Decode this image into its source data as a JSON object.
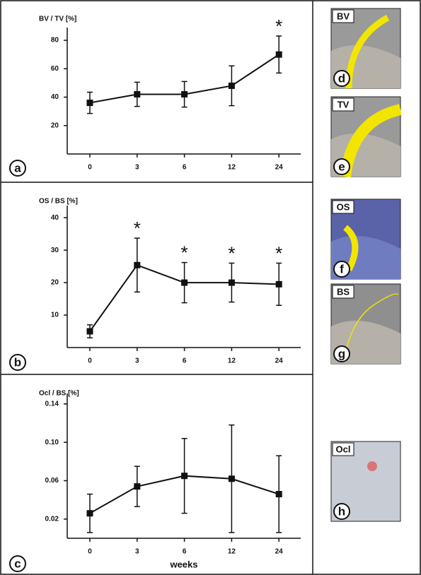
{
  "chart_data": [
    {
      "type": "line",
      "panel": "a",
      "title": "BV / TV [%]",
      "categories": [
        "0",
        "3",
        "6",
        "12",
        "24"
      ],
      "values": [
        36,
        42,
        42,
        48,
        70
      ],
      "errors": [
        7.5,
        8.5,
        9,
        14,
        13
      ],
      "ylim": [
        0,
        85
      ],
      "yticks": [
        20,
        40,
        60,
        80
      ],
      "color": "#111111",
      "annotations": [
        {
          "text": "*",
          "category": "24"
        }
      ]
    },
    {
      "type": "line",
      "panel": "b",
      "title": "OS / BS  [%]",
      "categories": [
        "0",
        "3",
        "6",
        "12",
        "24"
      ],
      "values": [
        5,
        25.4,
        20,
        20,
        19.5
      ],
      "errors": [
        2,
        8.3,
        6.2,
        6,
        6.5
      ],
      "ylim": [
        0,
        42
      ],
      "yticks": [
        10,
        20,
        30,
        40
      ],
      "color": "#111111",
      "annotations": [
        {
          "text": "*",
          "category": "3"
        },
        {
          "text": "*",
          "category": "6"
        },
        {
          "text": "*",
          "category": "12"
        },
        {
          "text": "*",
          "category": "24"
        }
      ]
    },
    {
      "type": "line",
      "panel": "c",
      "title": "Ocl / BS [%]",
      "x_label": "weeks",
      "categories": [
        "0",
        "3",
        "6",
        "12",
        "24"
      ],
      "values": [
        0.026,
        0.054,
        0.065,
        0.062,
        0.046
      ],
      "errors": [
        0.02,
        0.021,
        0.039,
        0.056,
        0.04
      ],
      "ylim": [
        0,
        0.145
      ],
      "yticks": [
        0.02,
        0.06,
        {
          "value": 0.1,
          "label": "0.10"
        },
        0.14
      ],
      "color": "#111111"
    }
  ],
  "images": [
    {
      "letter": "d",
      "label": "BV"
    },
    {
      "letter": "e",
      "label": "TV"
    },
    {
      "letter": "f",
      "label": "OS"
    },
    {
      "letter": "g",
      "label": "BS"
    },
    {
      "letter": "h",
      "label": "Ocl"
    }
  ]
}
